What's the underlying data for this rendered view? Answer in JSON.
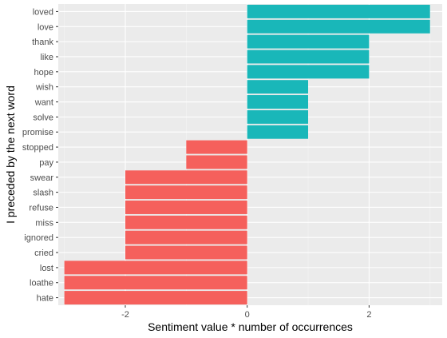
{
  "chart_data": {
    "type": "bar",
    "orientation": "horizontal",
    "title": "",
    "xlabel": "Sentiment value * number of occurrences",
    "ylabel": "I preceded by the next word",
    "xlim": [
      -3.1,
      3.2
    ],
    "xticks": [
      -2,
      0,
      2
    ],
    "grid": true,
    "legend": "none",
    "categories": [
      "loved",
      "love",
      "thank",
      "like",
      "hope",
      "wish",
      "want",
      "solve",
      "promise",
      "stopped",
      "pay",
      "swear",
      "slash",
      "refuse",
      "miss",
      "ignored",
      "cried",
      "lost",
      "loathe",
      "hate"
    ],
    "values": [
      3,
      3,
      2,
      2,
      2,
      1,
      1,
      1,
      1,
      -1,
      -1,
      -2,
      -2,
      -2,
      -2,
      -2,
      -2,
      -3,
      -3,
      -3
    ],
    "colors": {
      "positive": "#19b7b9",
      "negative": "#f5605c",
      "panel": "#ebebeb",
      "grid_major": "#ffffff",
      "grid_minor": "#f5f5f5"
    }
  }
}
